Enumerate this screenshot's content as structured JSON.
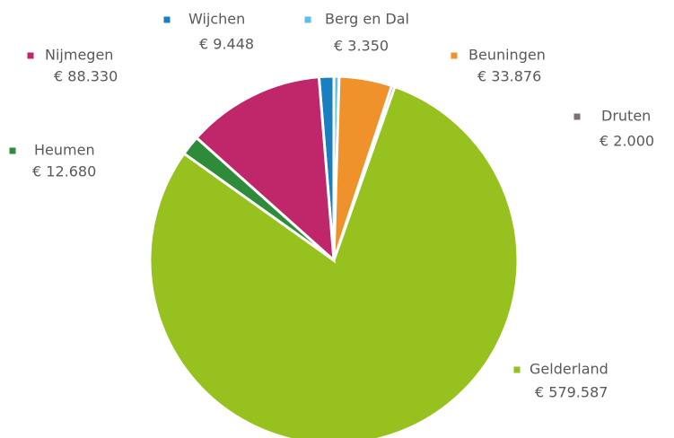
{
  "chart_data": {
    "type": "pie",
    "categories": [
      "Wijchen",
      "Berg en Dal",
      "Beuningen",
      "Druten",
      "Gelderland",
      "Heumen",
      "Nijmegen"
    ],
    "values": [
      9448,
      3350,
      33876,
      2000,
      579587,
      12680,
      88330
    ],
    "value_labels": [
      "€ 9.448",
      "€ 3.350",
      "€ 33.876",
      "€ 2.000",
      "€ 579.587",
      "€ 12.680",
      "€ 88.330"
    ],
    "colors": [
      "#1a7fc1",
      "#5bc0eb",
      "#f0922b",
      "#7f6f77",
      "#96c11f",
      "#2e8b3a",
      "#c0266a"
    ]
  }
}
